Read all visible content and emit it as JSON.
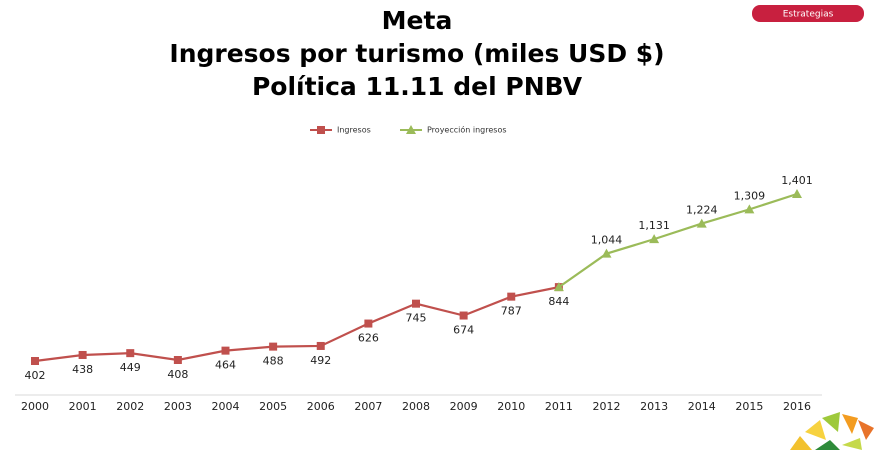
{
  "badge": "Estrategias",
  "chart_data": {
    "type": "line",
    "title": [
      "Meta",
      "Ingresos por turismo (miles USD $)",
      "Política 11.11 del PNBV"
    ],
    "categories": [
      "2000",
      "2001",
      "2002",
      "2003",
      "2004",
      "2005",
      "2006",
      "2007",
      "2008",
      "2009",
      "2010",
      "2011",
      "2012",
      "2013",
      "2014",
      "2015",
      "2016"
    ],
    "series": [
      {
        "name": "Ingresos",
        "color": "#c0504d",
        "marker": "square",
        "values": [
          402,
          438,
          449,
          408,
          464,
          488,
          492,
          626,
          745,
          674,
          787,
          844,
          null,
          null,
          null,
          null,
          null
        ]
      },
      {
        "name": "Proyección ingresos",
        "color": "#9bbb59",
        "marker": "triangle",
        "values": [
          null,
          null,
          null,
          null,
          null,
          null,
          null,
          null,
          null,
          null,
          null,
          844,
          1044,
          1131,
          1224,
          1309,
          1401
        ],
        "value_labels": [
          null,
          null,
          null,
          null,
          null,
          null,
          null,
          null,
          null,
          null,
          null,
          null,
          "1,044",
          "1,131",
          "1,224",
          "1,309",
          "1,401"
        ]
      }
    ],
    "legend": "top"
  }
}
